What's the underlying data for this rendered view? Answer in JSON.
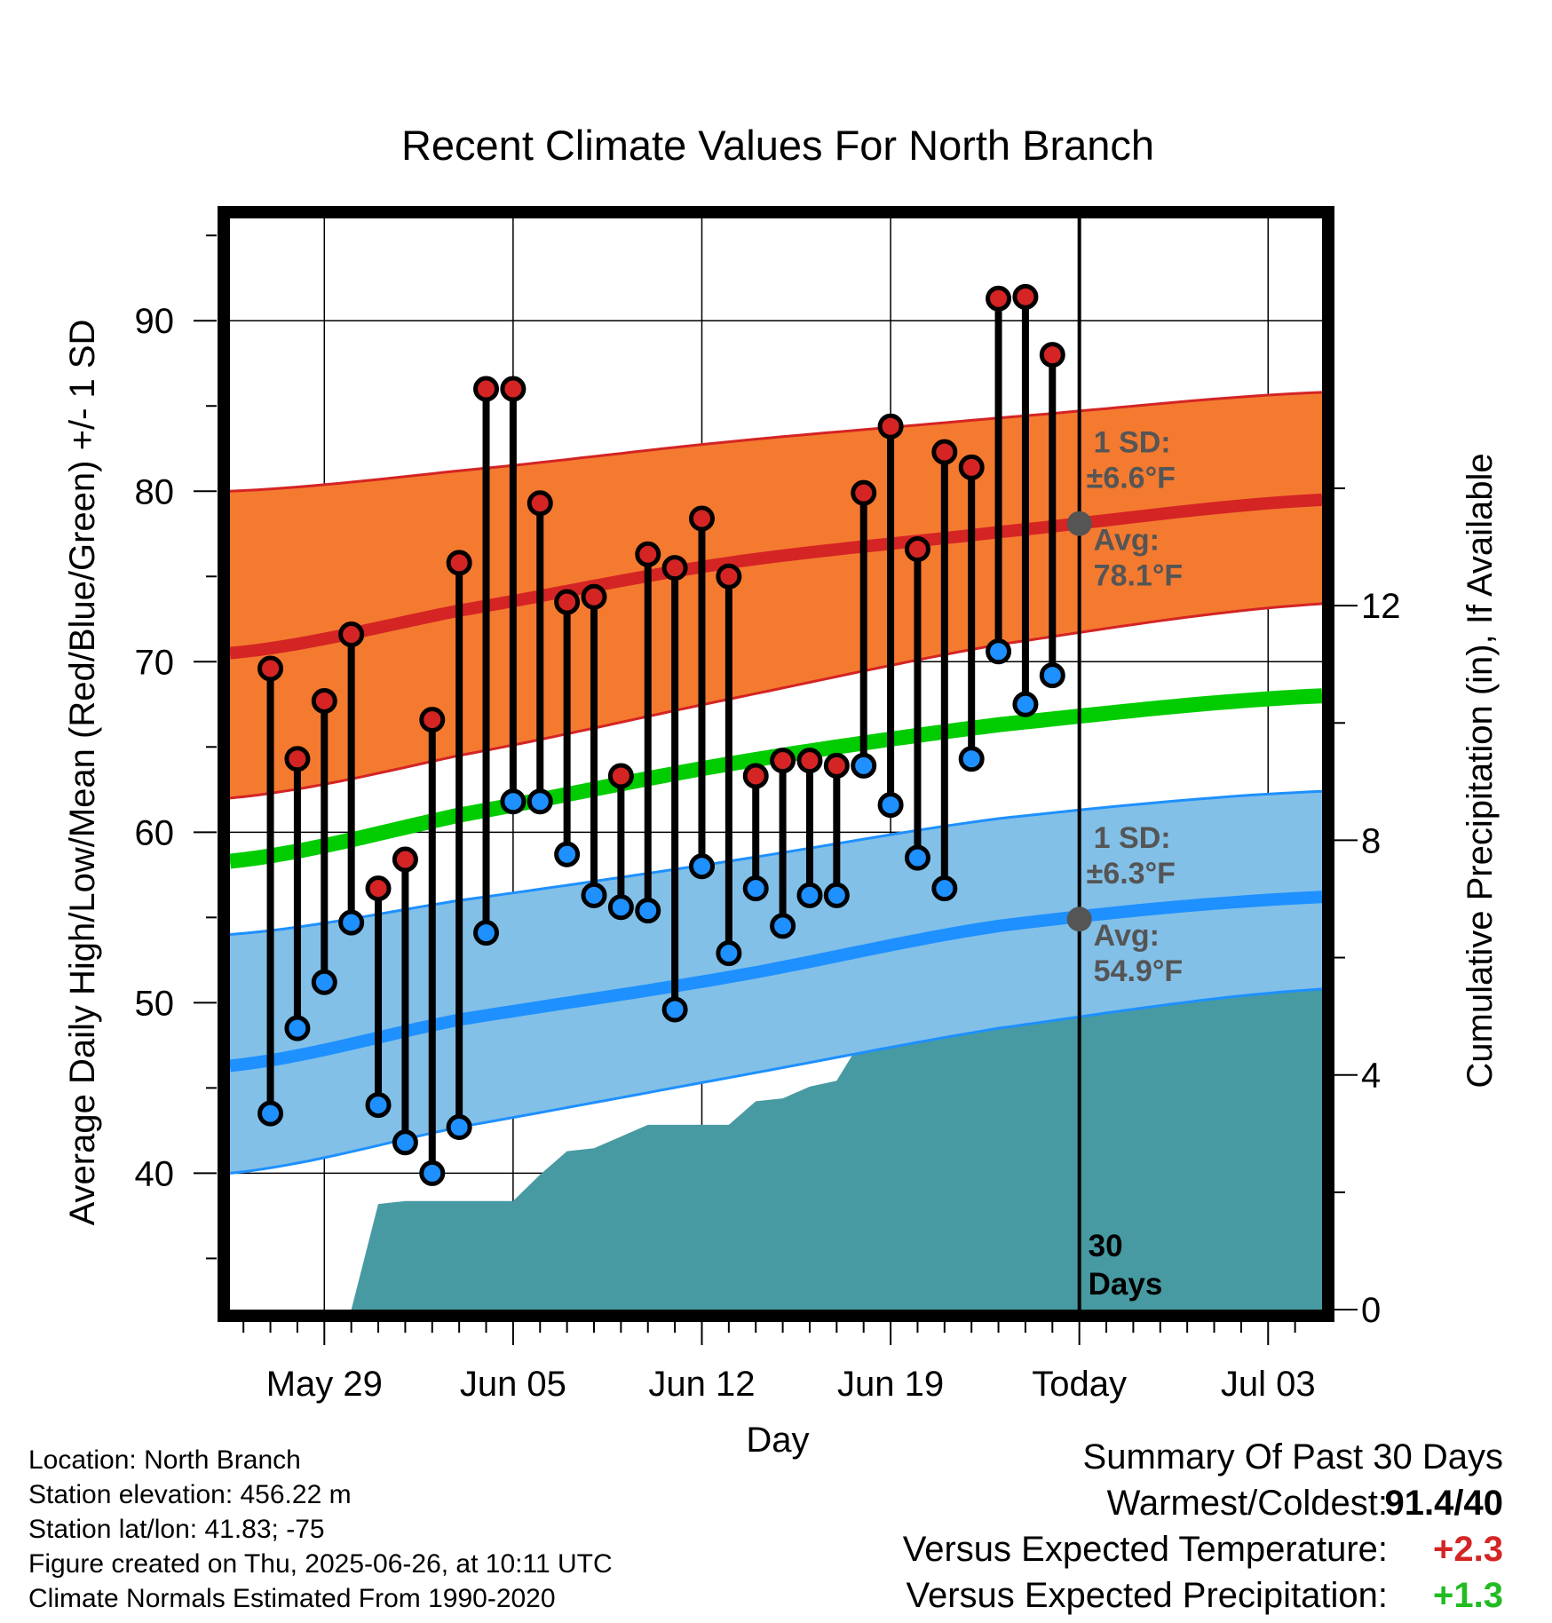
{
  "chart_data": {
    "type": "line",
    "title": "Recent Climate Values For North Branch",
    "xlabel": "Day",
    "ylabel": "Average Daily High/Low/Mean (Red/Blue/Green) +/- 1 SD",
    "y2label": "Cumulative Precipitation (in), If Available",
    "ylim": [
      32,
      96
    ],
    "y2lim": [
      0,
      18.6
    ],
    "xlim": [
      -3.5,
      37
    ],
    "x_ticks": [
      {
        "x": 0,
        "label": "May 29"
      },
      {
        "x": 7,
        "label": "Jun 05"
      },
      {
        "x": 14,
        "label": "Jun 12"
      },
      {
        "x": 21,
        "label": "Jun 19"
      },
      {
        "x": 28,
        "label": "Today"
      },
      {
        "x": 35,
        "label": "Jul 03"
      }
    ],
    "y_ticks": [
      40,
      50,
      60,
      70,
      80,
      90
    ],
    "y2_ticks": [
      0,
      4,
      8,
      12
    ],
    "grid": true,
    "today_x": 28,
    "today_label": [
      "30",
      "Days"
    ],
    "normals": {
      "x": [
        -3.5,
        5,
        15,
        25,
        37
      ],
      "high_avg": [
        70.5,
        73.0,
        75.8,
        77.6,
        79.5
      ],
      "high_upper": [
        80.0,
        81.2,
        82.9,
        84.3,
        85.8
      ],
      "high_lower": [
        62.0,
        64.5,
        67.8,
        71.0,
        73.4
      ],
      "mean_avg": [
        58.3,
        61.0,
        64.0,
        66.3,
        68.0
      ],
      "low_avg": [
        46.3,
        49.0,
        51.5,
        54.5,
        56.2
      ],
      "low_upper": [
        54.0,
        56.0,
        58.3,
        60.8,
        62.4
      ],
      "low_lower": [
        40.0,
        42.7,
        45.6,
        48.5,
        50.8
      ]
    },
    "high_sd_label": "1 SD:",
    "high_sd_value": "±6.6°F",
    "high_avg_label": "Avg:",
    "high_avg_value": "78.1°F",
    "low_sd_label": "1 SD:",
    "low_sd_value": "±6.3°F",
    "low_avg_label": "Avg:",
    "low_avg_value": "54.9°F",
    "today_high_avg": 78.1,
    "today_low_avg": 54.9,
    "daily": [
      {
        "x": -2,
        "high": 69.6,
        "low": 43.5
      },
      {
        "x": -1,
        "high": 64.3,
        "low": 48.5
      },
      {
        "x": 0,
        "high": 67.7,
        "low": 51.2
      },
      {
        "x": 1,
        "high": 71.6,
        "low": 54.7
      },
      {
        "x": 2,
        "high": 56.7,
        "low": 44.0
      },
      {
        "x": 3,
        "high": 58.4,
        "low": 41.8
      },
      {
        "x": 4,
        "high": 66.6,
        "low": 40.0
      },
      {
        "x": 5,
        "high": 75.8,
        "low": 42.7
      },
      {
        "x": 6,
        "high": 86.0,
        "low": 54.1
      },
      {
        "x": 7,
        "high": 86.0,
        "low": 61.8
      },
      {
        "x": 8,
        "high": 79.3,
        "low": 61.8
      },
      {
        "x": 9,
        "high": 73.5,
        "low": 58.7
      },
      {
        "x": 10,
        "high": 73.8,
        "low": 56.3
      },
      {
        "x": 11,
        "high": 63.3,
        "low": 55.6
      },
      {
        "x": 12,
        "high": 76.3,
        "low": 55.4
      },
      {
        "x": 13,
        "high": 75.5,
        "low": 49.6
      },
      {
        "x": 14,
        "high": 78.4,
        "low": 58.0
      },
      {
        "x": 15,
        "high": 75.0,
        "low": 52.9
      },
      {
        "x": 16,
        "high": 63.3,
        "low": 56.7
      },
      {
        "x": 17,
        "high": 64.2,
        "low": 54.5
      },
      {
        "x": 18,
        "high": 64.2,
        "low": 56.3
      },
      {
        "x": 19,
        "high": 63.9,
        "low": 56.3
      },
      {
        "x": 20,
        "high": 79.9,
        "low": 63.9
      },
      {
        "x": 21,
        "high": 83.8,
        "low": 61.6
      },
      {
        "x": 22,
        "high": 76.6,
        "low": 58.5
      },
      {
        "x": 23,
        "high": 82.3,
        "low": 56.7
      },
      {
        "x": 24,
        "high": 81.4,
        "low": 64.3
      },
      {
        "x": 25,
        "high": 91.3,
        "low": 70.6
      },
      {
        "x": 26,
        "high": 91.4,
        "low": 67.5
      },
      {
        "x": 27,
        "high": 88.0,
        "low": 69.2
      }
    ],
    "precip": {
      "x": [
        -2,
        -1,
        0,
        1,
        2,
        3,
        4,
        5,
        6,
        7,
        8,
        9,
        10,
        11,
        12,
        13,
        14,
        15,
        16,
        17,
        18,
        19,
        20,
        21,
        22,
        23,
        24,
        25,
        26,
        27,
        28,
        37
      ],
      "cumulative": [
        0,
        0,
        0,
        0,
        1.8,
        1.85,
        1.85,
        1.85,
        1.85,
        1.85,
        2.3,
        2.7,
        2.75,
        2.95,
        3.15,
        3.15,
        3.15,
        3.15,
        3.55,
        3.6,
        3.8,
        3.9,
        4.65,
        4.7,
        4.7,
        4.7,
        5.9,
        5.9,
        5.9,
        5.9,
        5.9,
        5.9
      ]
    },
    "colors": {
      "high_band": "#f47a30",
      "high_line": "#d42424",
      "mean_line": "#00cc00",
      "low_band": "#82c0e8",
      "low_line": "#1e90ff",
      "precip_fill": "#479aa1",
      "high_marker": "#d42424",
      "low_marker": "#1e90ff",
      "today_marker": "#555555"
    }
  },
  "info": {
    "location": "Location: North Branch",
    "elevation": "Station elevation: 456.22 m",
    "latlon": "Station lat/lon: 41.83; -75",
    "created": "Figure created on Thu, 2025-06-26, at 10:11 UTC",
    "normals": "Climate Normals Estimated From 1990-2020"
  },
  "summary": {
    "title": "Summary Of Past 30 Days",
    "warmest_label": "Warmest/Coldest:",
    "warmest_value": "91.4/40",
    "temp_label": "Versus Expected Temperature:",
    "temp_value": "+2.3",
    "temp_color": "#d42424",
    "precip_label": "Versus Expected Precipitation:",
    "precip_value": "+1.3",
    "precip_color": "#22bb22"
  }
}
